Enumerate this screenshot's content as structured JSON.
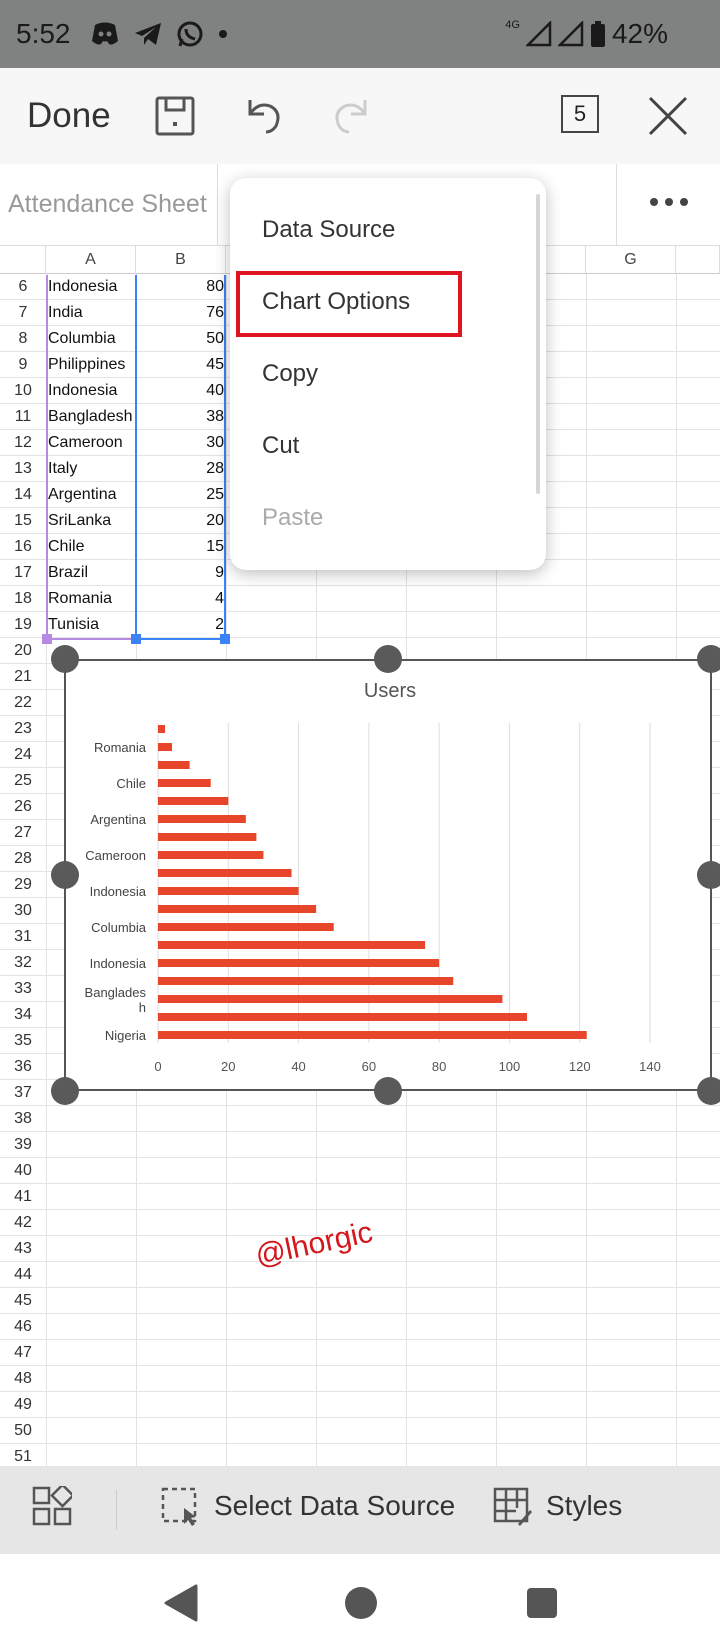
{
  "status_bar": {
    "time": "5:52",
    "network": "4G",
    "battery": "42%"
  },
  "toolbar": {
    "done_label": "Done",
    "sheet_count": "5"
  },
  "name_bar": {
    "sheet_name": "Attendance Sheet"
  },
  "grid": {
    "columns": [
      "A",
      "B",
      "G"
    ],
    "rows": [
      {
        "num": "6",
        "country": "Indonesia",
        "value": "80"
      },
      {
        "num": "7",
        "country": "India",
        "value": "76"
      },
      {
        "num": "8",
        "country": "Columbia",
        "value": "50"
      },
      {
        "num": "9",
        "country": "Philippines",
        "value": "45"
      },
      {
        "num": "10",
        "country": "Indonesia",
        "value": "40"
      },
      {
        "num": "11",
        "country": "Bangladesh",
        "value": "38"
      },
      {
        "num": "12",
        "country": "Cameroon",
        "value": "30"
      },
      {
        "num": "13",
        "country": "Italy",
        "value": "28"
      },
      {
        "num": "14",
        "country": "Argentina",
        "value": "25"
      },
      {
        "num": "15",
        "country": "SriLanka",
        "value": "20"
      },
      {
        "num": "16",
        "country": "Chile",
        "value": "15"
      },
      {
        "num": "17",
        "country": "Brazil",
        "value": "9"
      },
      {
        "num": "18",
        "country": "Romania",
        "value": "4"
      },
      {
        "num": "19",
        "country": "Tunisia",
        "value": "2"
      }
    ],
    "extra_row_numbers": [
      "20",
      "21",
      "22",
      "23",
      "24",
      "25",
      "26",
      "27",
      "28",
      "29",
      "30",
      "31",
      "32",
      "33",
      "34",
      "35",
      "36",
      "37",
      "38",
      "39",
      "40",
      "41",
      "42",
      "43",
      "44",
      "45",
      "46",
      "47",
      "48",
      "49",
      "50",
      "51"
    ]
  },
  "context_menu": {
    "items": [
      {
        "label": "Data Source",
        "enabled": true
      },
      {
        "label": "Chart Options",
        "enabled": true,
        "highlighted": true
      },
      {
        "label": "Copy",
        "enabled": true
      },
      {
        "label": "Cut",
        "enabled": true
      },
      {
        "label": "Paste",
        "enabled": false
      }
    ]
  },
  "chart_data": {
    "type": "bar",
    "orientation": "horizontal",
    "title": "Users",
    "category_labels_shown": [
      "Romania",
      "Chile",
      "Argentina",
      "Cameroon",
      "Indonesia",
      "Columbia",
      "Indonesia",
      "Bangladesh",
      "Nigeria"
    ],
    "values_top_to_bottom": [
      2,
      4,
      9,
      15,
      20,
      25,
      28,
      30,
      38,
      40,
      45,
      50,
      76,
      80,
      84,
      98,
      105,
      122
    ],
    "x_ticks": [
      "0",
      "20",
      "40",
      "60",
      "80",
      "100",
      "120",
      "140"
    ],
    "xlim": [
      0,
      140
    ],
    "grid": true,
    "bar_color": "#e8462a"
  },
  "watermark": "@lhorgic",
  "bottom_bar": {
    "select_data_source": "Select Data Source",
    "styles": "Styles"
  },
  "colors": {
    "status_bar_bg": "#7f8280",
    "highlight_border": "#e0141e",
    "selection_blue": "#3b82f6",
    "selection_purple": "#b48be0",
    "bar_color": "#e8462a"
  }
}
